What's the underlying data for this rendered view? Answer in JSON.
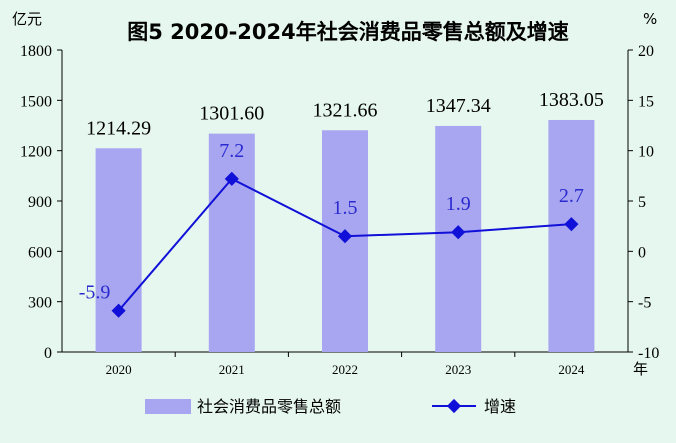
{
  "chart_data": {
    "type": "bar",
    "title": "图5  2020-2024年社会消费品零售总额及增速",
    "categories": [
      "2020",
      "2021",
      "2022",
      "2023",
      "2024"
    ],
    "xlabel": "年",
    "y_left": {
      "unit": "亿元",
      "ylim": [
        0,
        1800
      ],
      "ticks": [
        0,
        300,
        600,
        900,
        1200,
        1500,
        1800
      ]
    },
    "y_right": {
      "unit": "%",
      "ylim": [
        -10,
        20
      ],
      "ticks": [
        -10,
        -5,
        0,
        5,
        10,
        15,
        20
      ]
    },
    "series": [
      {
        "name": "社会消费品零售总额",
        "type": "bar",
        "axis": "left",
        "values": [
          1214.29,
          1301.6,
          1321.66,
          1347.34,
          1383.05
        ],
        "labels": [
          "1214.29",
          "1301.60",
          "1321.66",
          "1347.34",
          "1383.05"
        ],
        "color": "#a8a6f0"
      },
      {
        "name": "增速",
        "type": "line",
        "axis": "right",
        "values": [
          -5.9,
          7.2,
          1.5,
          1.9,
          2.7
        ],
        "labels": [
          "-5.9",
          "7.2",
          "1.5",
          "1.9",
          "2.7"
        ],
        "color": "#1010d8"
      }
    ],
    "grid": false,
    "legend": "bottom",
    "background": "#e6f7ef"
  }
}
